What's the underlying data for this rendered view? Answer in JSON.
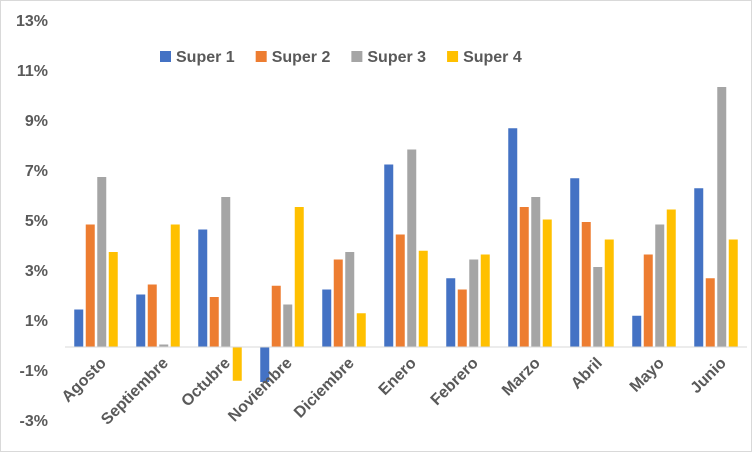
{
  "chart_data": {
    "type": "bar",
    "categories": [
      "Agosto",
      "Septiembre",
      "Octubre",
      "Noviembre",
      "Diciembre",
      "Enero",
      "Febrero",
      "Marzo",
      "Abril",
      "Mayo",
      "Junio"
    ],
    "series": [
      {
        "name": "Super 1",
        "color": "#4472c4",
        "values": [
          1.5,
          2.1,
          4.7,
          -1.4,
          2.3,
          7.3,
          2.75,
          8.75,
          6.75,
          1.25,
          6.35
        ]
      },
      {
        "name": "Super 2",
        "color": "#ed7d31",
        "values": [
          4.9,
          2.5,
          2.0,
          2.45,
          3.5,
          4.5,
          2.3,
          5.6,
          5.0,
          3.7,
          2.75
        ]
      },
      {
        "name": "Super 3",
        "color": "#a5a5a5",
        "values": [
          6.8,
          0.1,
          6.0,
          1.7,
          3.8,
          7.9,
          3.5,
          6.0,
          3.2,
          4.9,
          10.4
        ]
      },
      {
        "name": "Super 4",
        "color": "#ffc000",
        "values": [
          3.8,
          4.9,
          -1.35,
          5.6,
          1.35,
          3.85,
          3.7,
          5.1,
          4.3,
          5.5,
          4.3
        ]
      }
    ],
    "ylim": [
      -3,
      13
    ],
    "yticks": [
      {
        "value": -3,
        "label": "-3%"
      },
      {
        "value": -1,
        "label": "-1%"
      },
      {
        "value": 1,
        "label": "1%"
      },
      {
        "value": 3,
        "label": "3%"
      },
      {
        "value": 5,
        "label": "5%"
      },
      {
        "value": 7,
        "label": "7%"
      },
      {
        "value": 9,
        "label": "9%"
      },
      {
        "value": 11,
        "label": "11%"
      },
      {
        "value": 13,
        "label": "13%"
      }
    ],
    "grid": false,
    "legend": "top"
  }
}
